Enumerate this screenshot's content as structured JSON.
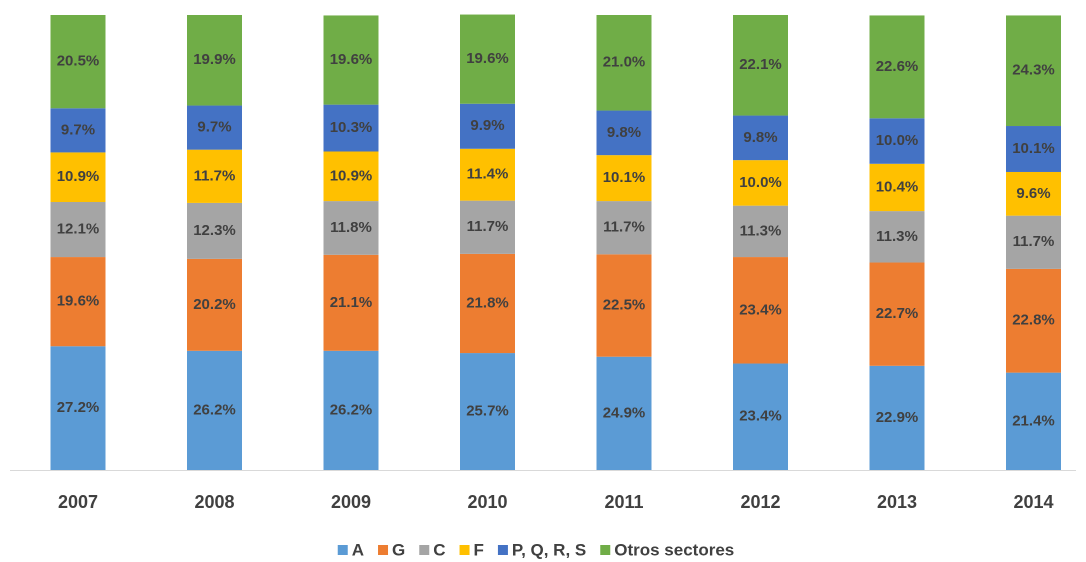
{
  "chart_data": {
    "type": "stacked_bar",
    "categories": [
      "2007",
      "2008",
      "2009",
      "2010",
      "2011",
      "2012",
      "2013",
      "2014"
    ],
    "ylim": [
      0,
      100
    ],
    "legend": "bottom",
    "series": [
      {
        "name": "A",
        "color": "#5b9bd5",
        "values": [
          27.2,
          26.2,
          26.2,
          25.7,
          24.9,
          23.4,
          22.9,
          21.4
        ],
        "value_labels": [
          "27.2%",
          "26.2%",
          "26.2%",
          "25.7%",
          "24.9%",
          "23.4%",
          "22.9%",
          "21.4%"
        ]
      },
      {
        "name": "G",
        "color": "#ed7d31",
        "values": [
          19.6,
          20.2,
          21.1,
          21.8,
          22.5,
          23.4,
          22.7,
          22.8
        ],
        "value_labels": [
          "19.6%",
          "20.2%",
          "21.1%",
          "21.8%",
          "22.5%",
          "23.4%",
          "22.7%",
          "22.8%"
        ]
      },
      {
        "name": "C",
        "color": "#a5a5a5",
        "values": [
          12.1,
          12.3,
          11.8,
          11.7,
          11.7,
          11.3,
          11.3,
          11.7
        ],
        "value_labels": [
          "12.1%",
          "12.3%",
          "11.8%",
          "11.7%",
          "11.7%",
          "11.3%",
          "11.3%",
          "11.7%"
        ]
      },
      {
        "name": "F",
        "color": "#ffc000",
        "values": [
          10.9,
          11.7,
          10.9,
          11.4,
          10.1,
          10.0,
          10.4,
          9.6
        ],
        "value_labels": [
          "10.9%",
          "11.7%",
          "10.9%",
          "11.4%",
          "10.1%",
          "10.0%",
          "10.4%",
          "9.6%"
        ]
      },
      {
        "name": "P, Q, R, S",
        "color": "#4472c4",
        "values": [
          9.7,
          9.7,
          10.3,
          9.9,
          9.8,
          9.8,
          10.0,
          10.1
        ],
        "value_labels": [
          "9.7%",
          "9.7%",
          "10.3%",
          "9.9%",
          "9.8%",
          "9.8%",
          "10.0%",
          "10.1%"
        ]
      },
      {
        "name": "Otros sectores",
        "color": "#70ad47",
        "values": [
          20.5,
          19.9,
          19.6,
          19.6,
          21.0,
          22.1,
          22.6,
          24.3
        ],
        "value_labels": [
          "20.5%",
          "19.9%",
          "19.6%",
          "19.6%",
          "21.0%",
          "22.1%",
          "22.6%",
          "24.3%"
        ]
      }
    ]
  }
}
